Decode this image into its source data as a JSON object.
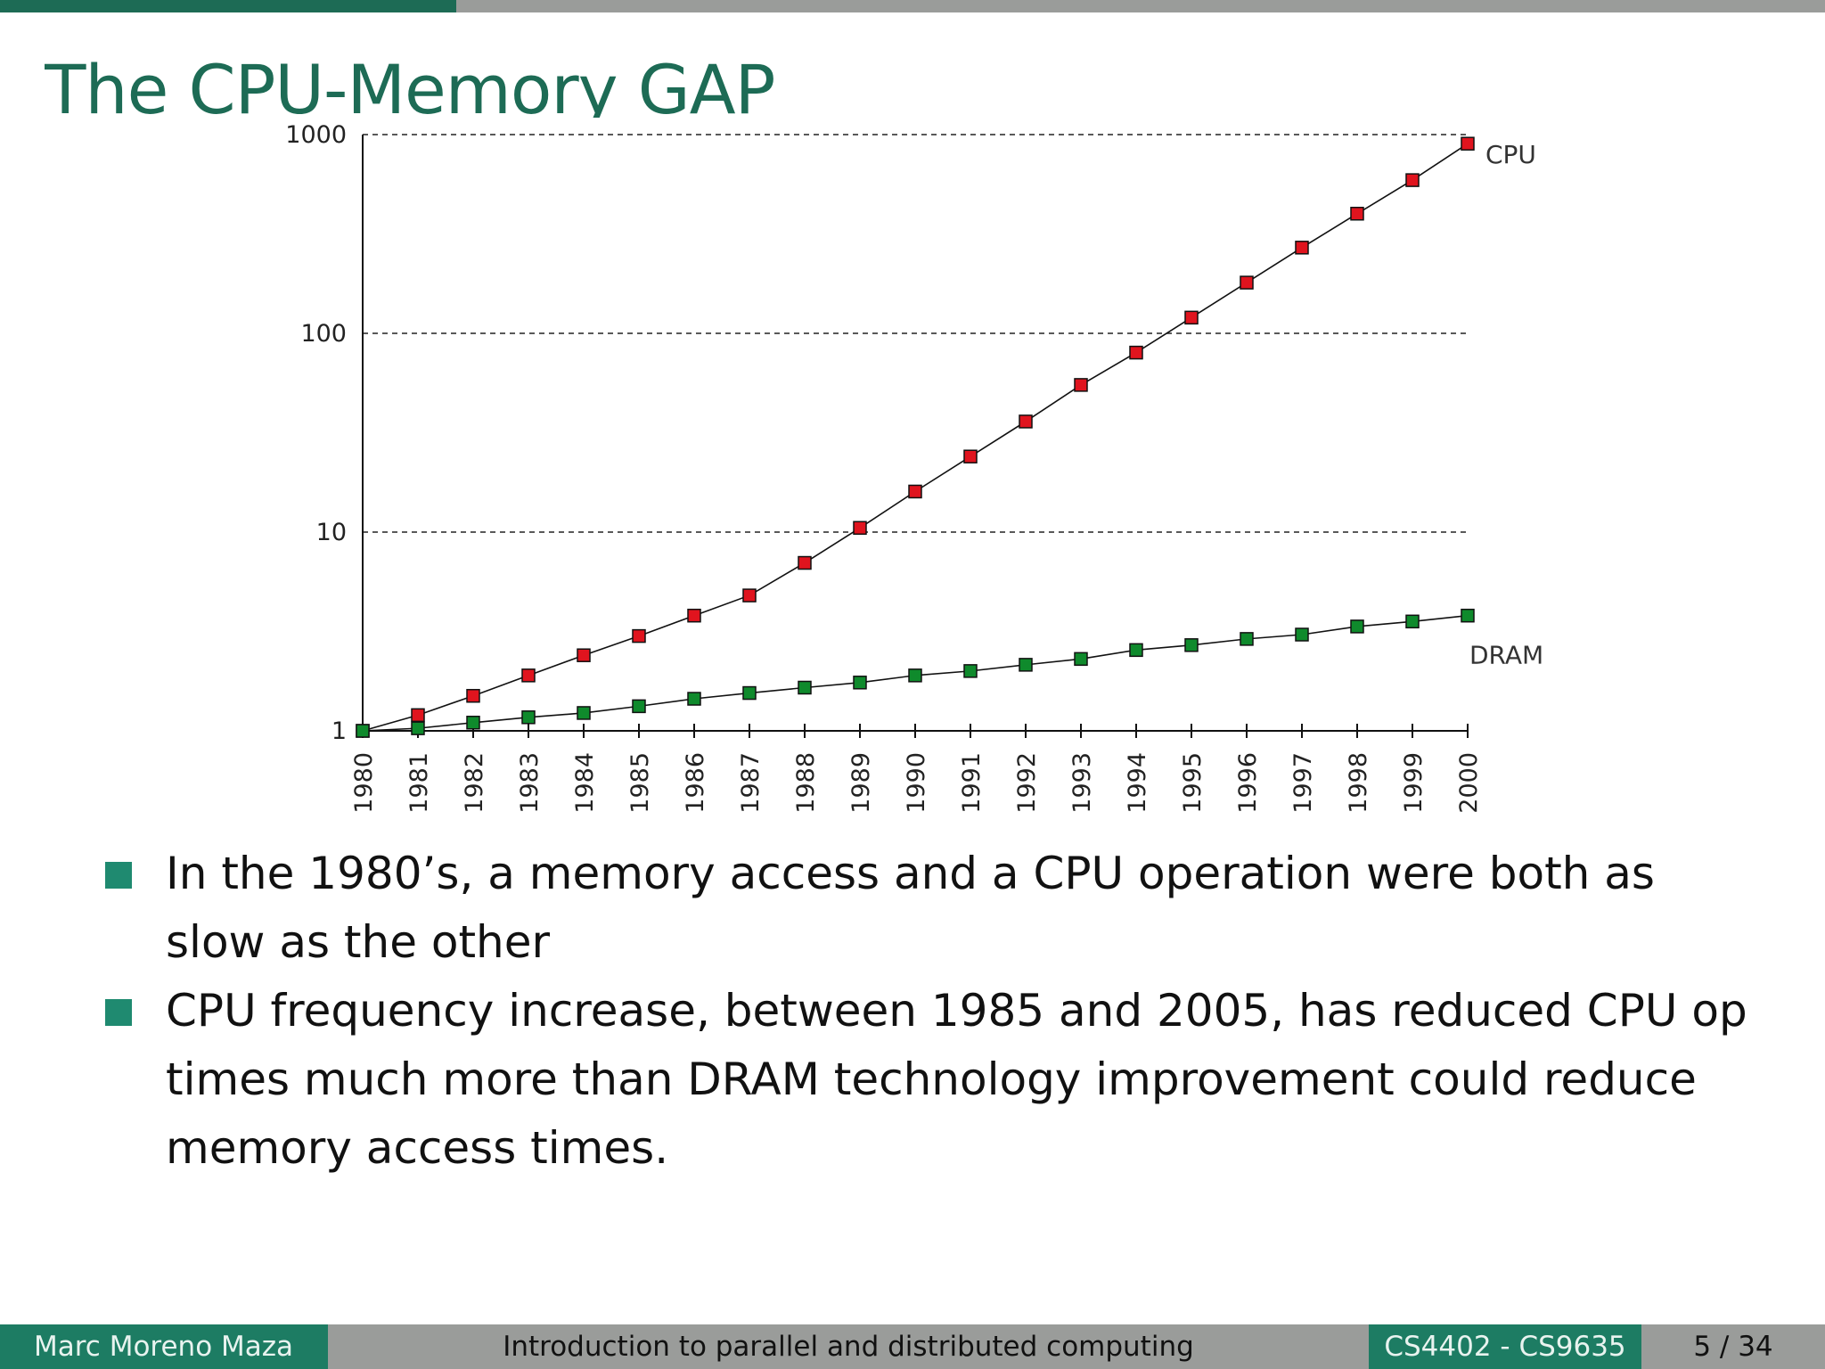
{
  "slide": {
    "title": "The CPU-Memory GAP",
    "bullets": [
      "In the 1980’s, a memory access and a CPU operation were both as slow as the other",
      "CPU frequency increase, between 1985 and 2005, has reduced CPU op times much more than DRAM technology improvement could reduce memory access times."
    ],
    "progress_fraction": 0.25
  },
  "footer": {
    "author": "Marc Moreno Maza",
    "talk_title": "Introduction to parallel and distributed computing",
    "course": "CS4402 - CS9635",
    "page": "5 / 34"
  },
  "colors": {
    "accent": "#1d6b55",
    "bullet": "#1f8a70",
    "cpu_marker": "#e0141e",
    "dram_marker": "#0f8a2c",
    "footer_gray": "#9a9c9a"
  },
  "chart_data": {
    "type": "line",
    "title": "",
    "xlabel": "",
    "ylabel": "",
    "yscale": "log",
    "ylim": [
      1,
      1000
    ],
    "yticks": [
      1,
      10,
      100,
      1000
    ],
    "x": [
      "1980",
      "1981",
      "1982",
      "1983",
      "1984",
      "1985",
      "1986",
      "1987",
      "1988",
      "1989",
      "1990",
      "1991",
      "1992",
      "1993",
      "1994",
      "1995",
      "1996",
      "1997",
      "1998",
      "1999",
      "2000"
    ],
    "grid": "horizontal dashed",
    "series": [
      {
        "name": "CPU",
        "marker_color": "#e0141e",
        "values": [
          1,
          1.2,
          1.5,
          1.9,
          2.4,
          3.0,
          3.8,
          4.8,
          7.0,
          10.5,
          16,
          24,
          36,
          55,
          80,
          120,
          180,
          270,
          400,
          590,
          900
        ]
      },
      {
        "name": "DRAM",
        "marker_color": "#0f8a2c",
        "values": [
          1,
          1.03,
          1.1,
          1.17,
          1.23,
          1.33,
          1.45,
          1.55,
          1.65,
          1.75,
          1.9,
          2.0,
          2.15,
          2.3,
          2.55,
          2.7,
          2.9,
          3.05,
          3.35,
          3.55,
          3.8
        ]
      }
    ]
  }
}
